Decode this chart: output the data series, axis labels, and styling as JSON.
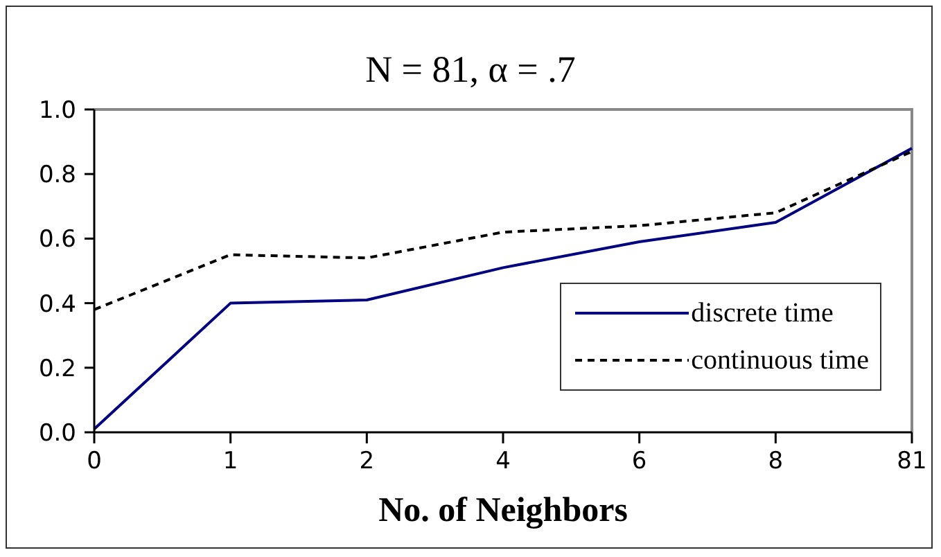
{
  "chart_data": {
    "type": "line",
    "title": "N = 81, α = .7",
    "xlabel": "No. of Neighbors",
    "categories": [
      "0",
      "1",
      "2",
      "4",
      "6",
      "8",
      "81"
    ],
    "series": [
      {
        "name": "discrete time",
        "color": "#000080",
        "line_style": "solid",
        "values": [
          0.01,
          0.4,
          0.41,
          0.51,
          0.59,
          0.65,
          0.88
        ]
      },
      {
        "name": "continuous time",
        "color": "#000000",
        "line_style": "dashed",
        "values": [
          0.38,
          0.55,
          0.54,
          0.62,
          0.64,
          0.68,
          0.87
        ]
      }
    ],
    "ylim": [
      0,
      1
    ],
    "yticks": [
      {
        "value": 0,
        "label": "0.0"
      },
      {
        "value": 0.2,
        "label": "0.2"
      },
      {
        "value": 0.4,
        "label": "0.4"
      },
      {
        "value": 0.6,
        "label": "0.6"
      },
      {
        "value": 0.8,
        "label": "0.8"
      },
      {
        "value": 1,
        "label": "1.0"
      }
    ],
    "legend": "bottom right",
    "marker": "none"
  }
}
